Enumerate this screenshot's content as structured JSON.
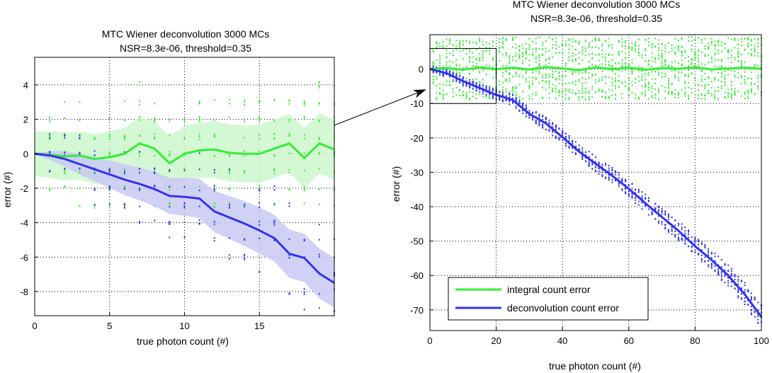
{
  "colors": {
    "integral": "#33ee33",
    "deconvolution": "#3333ee",
    "integral_band": "#cdf7cd",
    "deconvolution_band": "#c9c9f5",
    "frame": "#000000",
    "grid": "#000000"
  },
  "chart_data": [
    {
      "type": "line",
      "title": "MTC Wiener deconvolution 3000 MCs",
      "subtitle": "NSR=8.3e-06, threshold=0.35",
      "xlabel": "true photon count (#)",
      "ylabel": "error (#)",
      "xlim": [
        0,
        20
      ],
      "ylim": [
        -9.4,
        5.6
      ],
      "x_ticks": [
        0,
        5,
        10,
        15
      ],
      "y_ticks": [
        -8,
        -6,
        -4,
        -2,
        0,
        2,
        4
      ],
      "grid": true,
      "x": [
        0,
        1,
        2,
        3,
        4,
        5,
        6,
        7,
        8,
        9,
        10,
        11,
        12,
        13,
        14,
        15,
        16,
        17,
        18,
        19,
        20
      ],
      "series": [
        {
          "name": "integral count error",
          "values": [
            0,
            -0.05,
            -0.15,
            -0.1,
            -0.3,
            -0.2,
            0,
            0.6,
            0.3,
            -0.55,
            0,
            0.2,
            0.25,
            0.05,
            0,
            0,
            0.3,
            0.6,
            -0.25,
            0.6,
            0.25
          ],
          "band_halfwidth": [
            1.3,
            1.35,
            1.4,
            1.4,
            1.45,
            1.5,
            1.5,
            1.55,
            1.55,
            1.6,
            1.6,
            1.6,
            1.65,
            1.65,
            1.65,
            1.7,
            1.7,
            1.7,
            1.75,
            1.75,
            1.75
          ]
        },
        {
          "name": "deconvolution count error",
          "values": [
            0,
            -0.1,
            -0.3,
            -0.6,
            -0.9,
            -1.2,
            -1.5,
            -1.75,
            -2.05,
            -2.45,
            -2.5,
            -2.6,
            -3.35,
            -3.7,
            -4.05,
            -4.45,
            -4.9,
            -5.8,
            -6.05,
            -6.95,
            -7.5
          ],
          "band_halfwidth": [
            0.05,
            0.25,
            0.45,
            0.6,
            0.7,
            0.8,
            0.9,
            0.95,
            1.0,
            1.05,
            1.1,
            1.15,
            1.2,
            1.25,
            1.3,
            1.35,
            1.35,
            1.4,
            1.4,
            1.45,
            1.45
          ]
        }
      ]
    },
    {
      "type": "line",
      "title": "MTC Wiener deconvolution 3000 MCs",
      "subtitle": "NSR=8.3e-06, threshold=0.35",
      "xlabel": "true photon count (#)",
      "ylabel": "error (#)",
      "xlim": [
        0,
        100
      ],
      "ylim": [
        -76,
        10
      ],
      "x_ticks": [
        0,
        20,
        40,
        60,
        80,
        100
      ],
      "y_ticks": [
        -70,
        -60,
        -50,
        -40,
        -30,
        -20,
        -10,
        0
      ],
      "grid": true,
      "legend_position": "bottom-left",
      "zoom_box": {
        "x": [
          0,
          20
        ],
        "y": [
          -10,
          6
        ]
      },
      "x": [
        0,
        5,
        10,
        15,
        20,
        25,
        30,
        35,
        40,
        45,
        50,
        55,
        60,
        65,
        70,
        75,
        80,
        85,
        90,
        95,
        100
      ],
      "series": [
        {
          "name": "integral count error",
          "values": [
            0,
            0.3,
            -0.2,
            0.5,
            0,
            0.4,
            -0.1,
            0.6,
            0.2,
            -0.3,
            0.5,
            0,
            0.4,
            -0.2,
            0.3,
            0.1,
            0.5,
            -0.1,
            0.2,
            0.4,
            0.1
          ]
        },
        {
          "name": "deconvolution count error",
          "values": [
            0,
            -1.2,
            -3.5,
            -5.5,
            -7.5,
            -9,
            -13,
            -15.8,
            -19.8,
            -24,
            -27.5,
            -31,
            -34.8,
            -39,
            -43,
            -47,
            -51.5,
            -55.5,
            -60,
            -65.5,
            -72
          ]
        }
      ]
    }
  ]
}
